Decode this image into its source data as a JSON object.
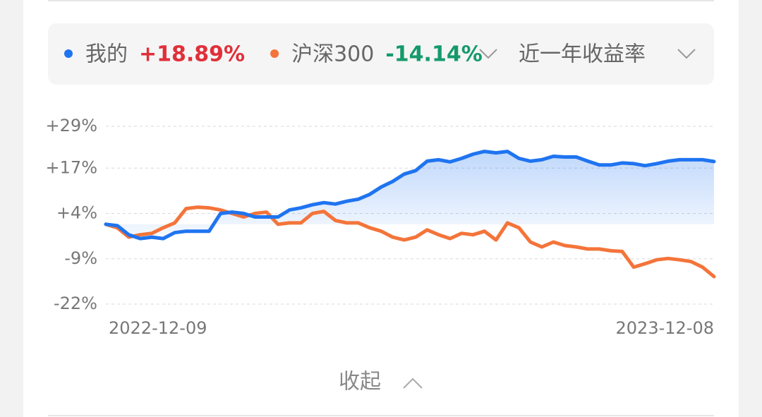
{
  "chart_data": {
    "type": "line",
    "period_label": "近一年收益率",
    "collapse_label": "收起",
    "categories": [
      "2022-12-09",
      null,
      null,
      null,
      null,
      null,
      null,
      null,
      null,
      null,
      null,
      null,
      null,
      null,
      null,
      null,
      null,
      null,
      null,
      null,
      null,
      null,
      null,
      null,
      null,
      null,
      null,
      null,
      null,
      null,
      null,
      null,
      null,
      null,
      null,
      null,
      null,
      null,
      null,
      null,
      null,
      null,
      null,
      null,
      null,
      null,
      null,
      null,
      null,
      null,
      null,
      null,
      null,
      "2023-12-08"
    ],
    "series": [
      {
        "name": "我的",
        "color": "#1f74f0",
        "return_label": "+18.89%",
        "return_color": "#e0303a",
        "values": [
          0.9,
          0.5,
          -2.1,
          -3.2,
          -2.8,
          -3.2,
          -1.5,
          -1.1,
          -1.1,
          -1.1,
          4.0,
          4.4,
          4.0,
          3.0,
          3.0,
          3.0,
          5.0,
          5.6,
          6.5,
          7.1,
          6.7,
          7.5,
          8.1,
          9.5,
          11.6,
          13.2,
          15.3,
          16.3,
          19.0,
          19.4,
          18.8,
          19.8,
          21.0,
          21.8,
          21.4,
          21.8,
          19.8,
          19.0,
          19.4,
          20.4,
          20.2,
          20.2,
          19.0,
          17.9,
          17.9,
          18.5,
          18.3,
          17.7,
          18.3,
          19.0,
          19.4,
          19.4,
          19.4,
          18.9
        ]
      },
      {
        "name": "沪深300",
        "color": "#f4743a",
        "return_label": "-14.14%",
        "return_color": "#159a6c",
        "values": [
          0.9,
          -0.1,
          -2.8,
          -2.1,
          -1.7,
          -0.1,
          1.3,
          5.4,
          5.8,
          5.6,
          5.0,
          4.0,
          3.0,
          4.0,
          4.4,
          0.9,
          1.3,
          1.3,
          4.0,
          4.6,
          2.0,
          1.3,
          1.3,
          -0.1,
          -1.1,
          -2.8,
          -3.6,
          -2.8,
          -0.7,
          -2.1,
          -3.2,
          -1.7,
          -2.1,
          -1.1,
          -3.6,
          1.3,
          -0.1,
          -4.2,
          -5.6,
          -4.2,
          -5.2,
          -5.6,
          -6.2,
          -6.2,
          -6.7,
          -6.9,
          -11.4,
          -10.4,
          -9.3,
          -8.9,
          -9.3,
          -9.8,
          -11.4,
          -14.1
        ]
      }
    ],
    "ylim": [
      -22,
      29
    ],
    "yticks": [
      {
        "value": 29,
        "label": "+29%"
      },
      {
        "value": 17,
        "label": "+17%"
      },
      {
        "value": 4,
        "label": "+4%"
      },
      {
        "value": -9,
        "label": "-9%"
      },
      {
        "value": -22,
        "label": "-22%"
      }
    ],
    "grid": true,
    "area_under": 0
  }
}
